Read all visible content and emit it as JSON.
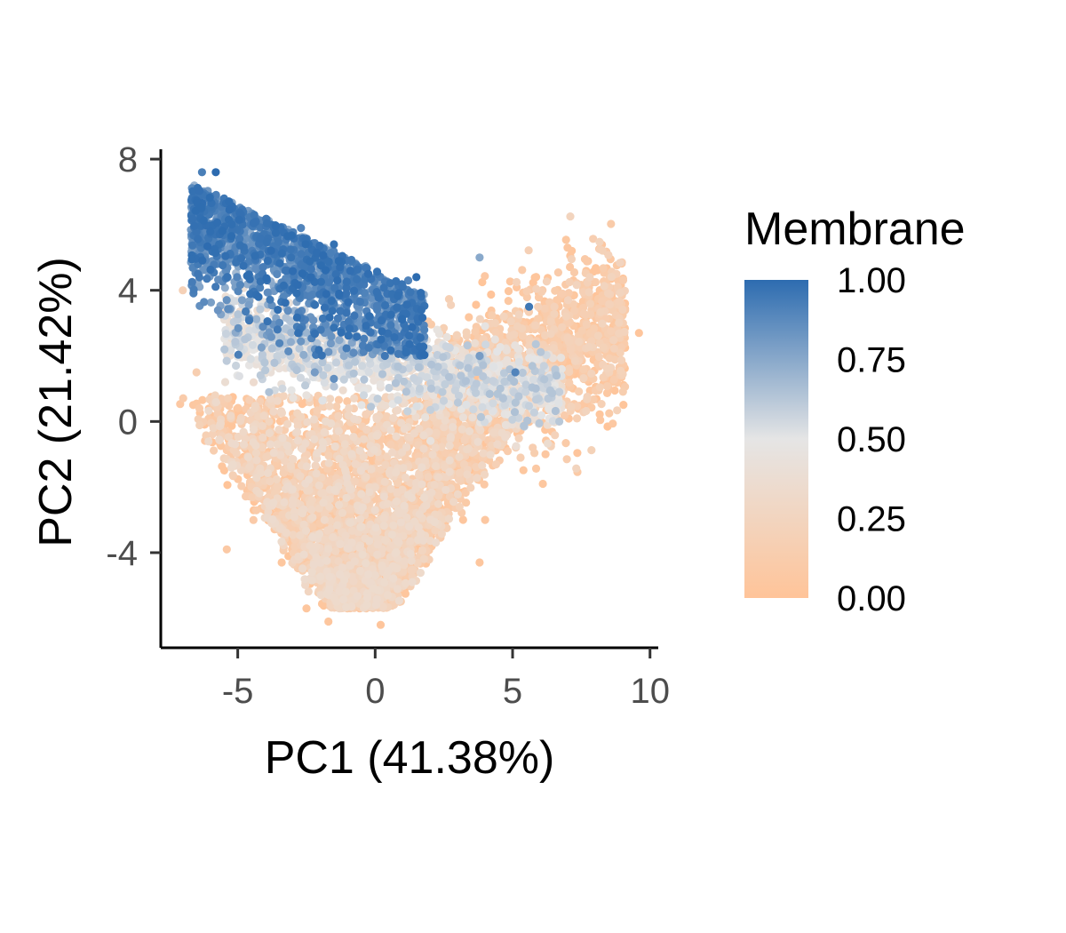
{
  "chart_data": {
    "type": "scatter",
    "title": "",
    "xlabel": "PC1 (41.38%)",
    "ylabel": "PC2 (21.42%)",
    "xlim": [
      -7.8,
      10.3
    ],
    "ylim": [
      -6.9,
      8.3
    ],
    "xticks": [
      -5,
      0,
      5,
      10
    ],
    "yticks": [
      -4,
      0,
      4,
      8
    ],
    "xtick_labels": [
      "-5",
      "0",
      "5",
      "10"
    ],
    "ytick_labels": [
      "-4",
      "0",
      "4",
      "8"
    ],
    "grid": false,
    "legend": {
      "title": "Membrane",
      "placement": "right",
      "type": "colorbar",
      "range": [
        0,
        1
      ],
      "ticks": [
        1.0,
        0.75,
        0.5,
        0.25,
        0.0
      ],
      "tick_labels": [
        "1.00",
        "0.75",
        "0.50",
        "0.25",
        "0.00"
      ]
    },
    "color_scale": {
      "low": "#ffc499",
      "mid": "#e5e5e5",
      "high": "#2d6cb0",
      "midpoint": 0.5
    },
    "series": [
      {
        "color_variable": "Membrane",
        "points_sample": [
          {
            "x": -6.3,
            "y": 7.6,
            "membrane": 0.92
          },
          {
            "x": -5.8,
            "y": 7.6,
            "membrane": 1.0
          },
          {
            "x": -6.6,
            "y": 7.0,
            "membrane": 0.85
          },
          {
            "x": -5.5,
            "y": 6.8,
            "membrane": 0.95
          },
          {
            "x": -4.4,
            "y": 6.3,
            "membrane": 0.95
          },
          {
            "x": -2.7,
            "y": 5.9,
            "membrane": 0.9
          },
          {
            "x": -1.5,
            "y": 5.4,
            "membrane": 0.98
          },
          {
            "x": -0.6,
            "y": 4.7,
            "membrane": 0.95
          },
          {
            "x": 1.2,
            "y": 4.3,
            "membrane": 0.9
          },
          {
            "x": 1.5,
            "y": 4.4,
            "membrane": 1.0
          },
          {
            "x": 3.8,
            "y": 5.0,
            "membrane": 0.75
          },
          {
            "x": 5.6,
            "y": 3.5,
            "membrane": 0.95
          },
          {
            "x": 5.1,
            "y": 1.5,
            "membrane": 0.9
          },
          {
            "x": 6.6,
            "y": 1.4,
            "membrane": 0.65
          },
          {
            "x": 3.8,
            "y": 2.0,
            "membrane": 0.8
          },
          {
            "x": -2.2,
            "y": 1.5,
            "membrane": 0.8
          },
          {
            "x": -1.5,
            "y": 1.3,
            "membrane": 0.85
          },
          {
            "x": -7.0,
            "y": 4.0,
            "membrane": 0.2
          },
          {
            "x": -6.5,
            "y": 1.5,
            "membrane": 0.15
          },
          {
            "x": 7.0,
            "y": 5.3,
            "membrane": 0.05
          },
          {
            "x": 9.6,
            "y": 2.7,
            "membrane": 0.02
          },
          {
            "x": 8.5,
            "y": 1.0,
            "membrane": 0.05
          },
          {
            "x": 6.2,
            "y": -1.0,
            "membrane": 0.05
          },
          {
            "x": 6.1,
            "y": -1.9,
            "membrane": 0.04
          },
          {
            "x": 4.0,
            "y": -3.0,
            "membrane": 0.05
          },
          {
            "x": 3.8,
            "y": -4.3,
            "membrane": 0.03
          },
          {
            "x": -5.4,
            "y": -3.9,
            "membrane": 0.08
          },
          {
            "x": -3.4,
            "y": -4.3,
            "membrane": 0.04
          },
          {
            "x": -2.5,
            "y": -5.7,
            "membrane": 0.03
          },
          {
            "x": -1.7,
            "y": -6.1,
            "membrane": 0.03
          },
          {
            "x": 0.2,
            "y": -6.2,
            "membrane": 0.02
          },
          {
            "x": 0.9,
            "y": -5.5,
            "membrane": 0.03
          },
          {
            "x": 0.0,
            "y": -2.0,
            "membrane": 0.3
          },
          {
            "x": -0.5,
            "y": 0.5,
            "membrane": 0.5
          },
          {
            "x": -2.5,
            "y": 0.8,
            "membrane": 0.45
          },
          {
            "x": 2.0,
            "y": 0.5,
            "membrane": 0.25
          },
          {
            "x": 1.2,
            "y": 0.8,
            "membrane": 0.4
          },
          {
            "x": 4.5,
            "y": 0.3,
            "membrane": 0.2
          },
          {
            "x": -3.5,
            "y": 3.0,
            "membrane": 0.7
          },
          {
            "x": -4.7,
            "y": 4.8,
            "membrane": 0.88
          }
        ],
        "density_regions": [
          {
            "description": "high-membrane cluster",
            "x_range": [
              -6.7,
              1.8
            ],
            "y_range": [
              2.0,
              7.6
            ],
            "membrane_range": [
              0.65,
              1.0
            ]
          },
          {
            "description": "transition band",
            "x_range": [
              -5.5,
              6.8
            ],
            "y_range": [
              0.0,
              2.5
            ],
            "membrane_range": [
              0.35,
              0.65
            ]
          },
          {
            "description": "low-membrane lower lobe",
            "x_range": [
              -5.5,
              4.5
            ],
            "y_range": [
              -6.3,
              0.5
            ],
            "membrane_range": [
              0.0,
              0.35
            ]
          },
          {
            "description": "low-membrane right lobe",
            "x_range": [
              1.5,
              9.6
            ],
            "y_range": [
              -1.5,
              5.3
            ],
            "membrane_range": [
              0.0,
              0.25
            ]
          }
        ]
      }
    ]
  }
}
